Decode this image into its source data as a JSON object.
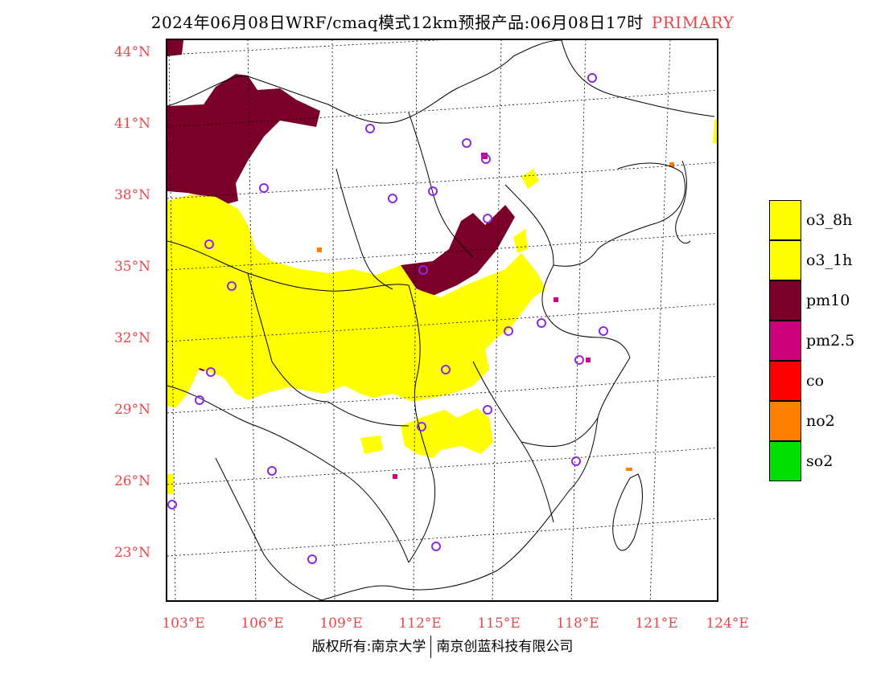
{
  "title": {
    "text": "2024年06月08日WRF/cmaq模式12km预报产品:06月08日17时",
    "tag": "PRIMARY"
  },
  "map": {
    "lat_labels": [
      "44°N",
      "41°N",
      "38°N",
      "35°N",
      "32°N",
      "29°N",
      "26°N",
      "23°N"
    ],
    "lon_labels": [
      "103°E",
      "106°E",
      "109°E",
      "112°E",
      "115°E",
      "118°E",
      "121°E",
      "124°E"
    ],
    "extent": {
      "lon_min": 103,
      "lon_max": 124,
      "lat_min": 21,
      "lat_max": 44.5
    },
    "station_marker_color": "#8a2be2",
    "boundary_color": "#000000",
    "graticule_style": "dotted"
  },
  "legend": {
    "items": [
      {
        "label": "o3_8h",
        "color": "#ffff00"
      },
      {
        "label": "o3_1h",
        "color": "#ffff00"
      },
      {
        "label": "pm10",
        "color": "#7a0029"
      },
      {
        "label": "pm2.5",
        "color": "#cc0077"
      },
      {
        "label": "co",
        "color": "#ff0000"
      },
      {
        "label": "no2",
        "color": "#ff7f00"
      },
      {
        "label": "so2",
        "color": "#00dd00"
      }
    ]
  },
  "credit": {
    "left": "版权所有:南京大学",
    "right": "南京创蓝科技有限公司"
  }
}
